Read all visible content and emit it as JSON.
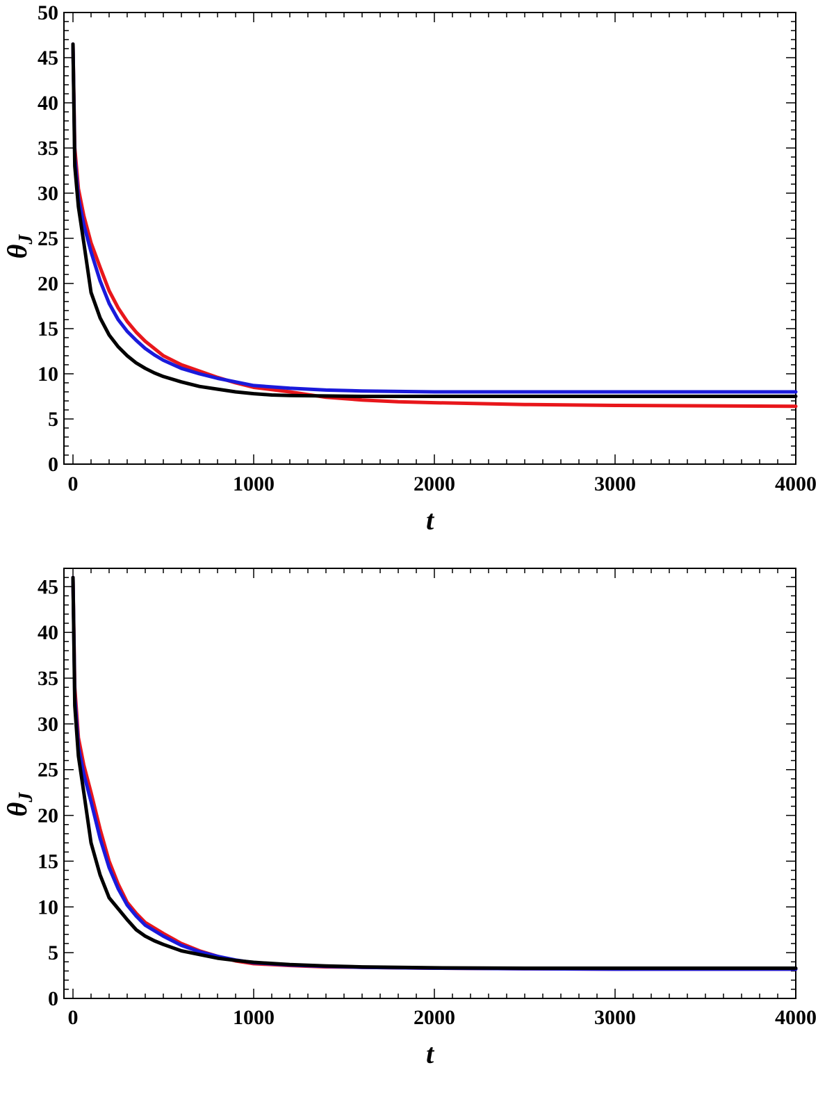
{
  "chart_data": [
    {
      "type": "line",
      "xlabel": "t",
      "ylabel": "θ",
      "ylabel_sub": "J",
      "xlim": [
        -50,
        4000
      ],
      "ylim": [
        0,
        50
      ],
      "xticks": [
        0,
        1000,
        2000,
        3000,
        4000
      ],
      "xtick_labels": [
        "0",
        "1000",
        "2000",
        "3000",
        "4000"
      ],
      "yticks": [
        0,
        5,
        10,
        15,
        20,
        25,
        30,
        35,
        40,
        45,
        50
      ],
      "ytick_labels": [
        "0",
        "5",
        "10",
        "15",
        "20",
        "25",
        "30",
        "35",
        "40",
        "45",
        "50"
      ],
      "grid": false,
      "series": [
        {
          "color": "#e8161b",
          "x": [
            0,
            10,
            30,
            60,
            100,
            150,
            200,
            250,
            300,
            350,
            400,
            450,
            500,
            600,
            700,
            800,
            900,
            1000,
            1200,
            1400,
            1600,
            1800,
            2000,
            2500,
            3000,
            3500,
            4000
          ],
          "y": [
            46.5,
            35,
            30.5,
            27.5,
            24.5,
            21.8,
            19.2,
            17.3,
            15.8,
            14.6,
            13.6,
            12.8,
            12.0,
            11.0,
            10.3,
            9.6,
            9.0,
            8.5,
            8.0,
            7.4,
            7.1,
            6.9,
            6.8,
            6.6,
            6.5,
            6.45,
            6.4
          ]
        },
        {
          "color": "#1a1adb",
          "x": [
            0,
            10,
            30,
            60,
            100,
            150,
            200,
            250,
            300,
            350,
            400,
            450,
            500,
            600,
            700,
            800,
            900,
            1000,
            1200,
            1400,
            1600,
            1800,
            2000,
            2500,
            3000,
            3500,
            4000
          ],
          "y": [
            46.5,
            34,
            29.5,
            26.5,
            23.5,
            20.3,
            17.8,
            16.0,
            14.7,
            13.7,
            12.8,
            12.1,
            11.5,
            10.6,
            10.0,
            9.5,
            9.1,
            8.7,
            8.4,
            8.2,
            8.1,
            8.05,
            8.0,
            8.0,
            8.0,
            8.0,
            8.0
          ]
        },
        {
          "color": "#000000",
          "x": [
            0,
            10,
            30,
            60,
            100,
            150,
            200,
            250,
            300,
            350,
            400,
            450,
            500,
            600,
            700,
            800,
            900,
            1000,
            1100,
            1200,
            1400,
            1600,
            1800,
            2000,
            2500,
            3000,
            3500,
            4000
          ],
          "y": [
            46.5,
            33,
            28.5,
            24.5,
            19.0,
            16.2,
            14.3,
            13.0,
            12.0,
            11.2,
            10.6,
            10.1,
            9.7,
            9.1,
            8.6,
            8.3,
            8.0,
            7.8,
            7.65,
            7.6,
            7.55,
            7.5,
            7.5,
            7.5,
            7.5,
            7.5,
            7.5,
            7.5
          ]
        }
      ]
    },
    {
      "type": "line",
      "xlabel": "t",
      "ylabel": "θ",
      "ylabel_sub": "J",
      "xlim": [
        -50,
        4000
      ],
      "ylim": [
        0,
        47
      ],
      "xticks": [
        0,
        1000,
        2000,
        3000,
        4000
      ],
      "xtick_labels": [
        "0",
        "1000",
        "2000",
        "3000",
        "4000"
      ],
      "yticks": [
        0,
        5,
        10,
        15,
        20,
        25,
        30,
        35,
        40,
        45
      ],
      "ytick_labels": [
        "0",
        "5",
        "10",
        "15",
        "20",
        "25",
        "30",
        "35",
        "40",
        "45"
      ],
      "grid": false,
      "series": [
        {
          "color": "#e8161b",
          "x": [
            0,
            10,
            30,
            60,
            100,
            150,
            200,
            250,
            300,
            350,
            400,
            450,
            500,
            600,
            700,
            800,
            900,
            1000,
            1200,
            1400,
            1600,
            1800,
            2000,
            2500,
            3000,
            3500,
            4000
          ],
          "y": [
            46.0,
            34,
            28.5,
            25.5,
            22.5,
            18.5,
            15.0,
            12.5,
            10.5,
            9.3,
            8.3,
            7.7,
            7.1,
            6.0,
            5.2,
            4.6,
            4.1,
            3.8,
            3.6,
            3.45,
            3.4,
            3.35,
            3.3,
            3.25,
            3.2,
            3.2,
            3.2
          ]
        },
        {
          "color": "#1a1adb",
          "x": [
            0,
            10,
            30,
            60,
            100,
            150,
            200,
            250,
            300,
            350,
            400,
            450,
            500,
            600,
            700,
            800,
            900,
            1000,
            1200,
            1400,
            1600,
            1800,
            2000,
            2500,
            3000,
            3500,
            4000
          ],
          "y": [
            46.0,
            33,
            27.5,
            24.5,
            21.5,
            17.5,
            14.3,
            12.0,
            10.2,
            9.0,
            8.0,
            7.4,
            6.8,
            5.8,
            5.1,
            4.6,
            4.2,
            3.9,
            3.65,
            3.5,
            3.4,
            3.35,
            3.3,
            3.25,
            3.2,
            3.2,
            3.2
          ]
        },
        {
          "color": "#000000",
          "x": [
            0,
            10,
            30,
            60,
            100,
            150,
            200,
            250,
            300,
            350,
            400,
            450,
            500,
            600,
            700,
            800,
            900,
            1000,
            1200,
            1400,
            1600,
            1800,
            2000,
            2500,
            3000,
            3500,
            4000
          ],
          "y": [
            46.0,
            32,
            26.5,
            22.5,
            17.0,
            13.5,
            11.0,
            9.8,
            8.6,
            7.5,
            6.8,
            6.3,
            5.9,
            5.2,
            4.8,
            4.4,
            4.15,
            3.95,
            3.7,
            3.55,
            3.45,
            3.4,
            3.35,
            3.3,
            3.3,
            3.3,
            3.3
          ]
        }
      ]
    }
  ]
}
